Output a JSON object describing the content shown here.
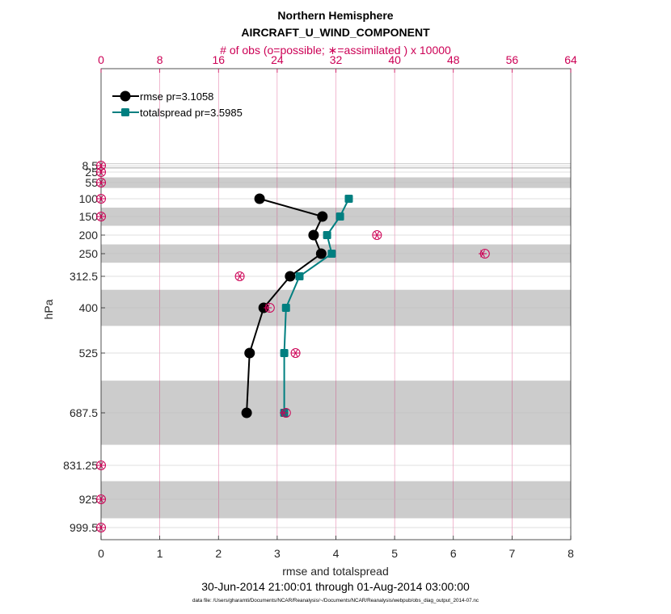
{
  "chart_data": {
    "type": "line",
    "title": "Northern Hemisphere",
    "subtitle": "AIRCRAFT_U_WIND_COMPONENT",
    "top_axis_label": "# of obs (o=possible; ∗=assimilated ) x 10000",
    "xlabel": "rmse and totalspread",
    "ylabel": "hPa",
    "date_range": "30-Jun-2014 21:00:01 through 01-Aug-2014 03:00:00",
    "footer": "data file: /Users/gharamti/Documents/NCAR/Reanalysis/~/Documents/NCAR/Reanalysis/webpub/obs_diag_output_2014-07.nc",
    "xlim": [
      0,
      8
    ],
    "x_ticks": [
      "0",
      "1",
      "2",
      "3",
      "4",
      "5",
      "6",
      "7",
      "8"
    ],
    "top_xlim": [
      0,
      64
    ],
    "top_ticks": [
      "0",
      "8",
      "16",
      "24",
      "32",
      "40",
      "48",
      "56",
      "64"
    ],
    "y_levels": [
      8.5,
      25,
      55,
      100,
      150,
      200,
      250,
      312.5,
      400,
      525,
      687.5,
      831.25,
      925,
      999.5
    ],
    "y_tick_labels": [
      "8.5",
      "25",
      "55",
      "100",
      "150",
      "200",
      "250",
      "312.5",
      "400",
      "525",
      "687.5",
      "831.25",
      "925",
      "999.5"
    ],
    "shaded_bands_hPa": [
      [
        2.5,
        4.5
      ],
      [
        12,
        16
      ],
      [
        40,
        70
      ],
      [
        125,
        175
      ],
      [
        225,
        275
      ],
      [
        350,
        450
      ],
      [
        600,
        775
      ],
      [
        875,
        975
      ]
    ],
    "legend": [
      {
        "label": "rmse pr=3.1058",
        "color": "#000000",
        "marker": "circle"
      },
      {
        "label": "totalspread pr=3.5985",
        "color": "#007f80",
        "marker": "square"
      }
    ],
    "legend_position": "top-left",
    "series": [
      {
        "name": "rmse",
        "color": "#000000",
        "levels": [
          100,
          150,
          200,
          250,
          312.5,
          400,
          525,
          687.5
        ],
        "values": [
          2.7,
          3.77,
          3.62,
          3.75,
          3.22,
          2.77,
          2.53,
          2.48
        ]
      },
      {
        "name": "totalspread",
        "color": "#007f80",
        "levels": [
          100,
          150,
          200,
          250,
          312.5,
          400,
          525,
          687.5
        ],
        "values": [
          4.22,
          4.07,
          3.85,
          3.93,
          3.38,
          3.15,
          3.12,
          3.12
        ]
      }
    ],
    "obs_counts": {
      "color": "#cc0055",
      "levels": [
        8.5,
        25,
        55,
        100,
        150,
        200,
        250,
        312.5,
        400,
        525,
        687.5,
        831.25,
        925,
        999.5
      ],
      "possible": [
        0,
        0,
        0,
        0,
        0,
        37.6,
        52.3,
        18.9,
        23,
        26.5,
        25.2,
        0,
        0,
        0
      ],
      "assimilated": [
        0,
        0,
        0,
        0,
        0,
        37.6,
        52.0,
        18.9,
        22.7,
        26.5,
        24.9,
        0,
        0,
        0
      ]
    }
  }
}
